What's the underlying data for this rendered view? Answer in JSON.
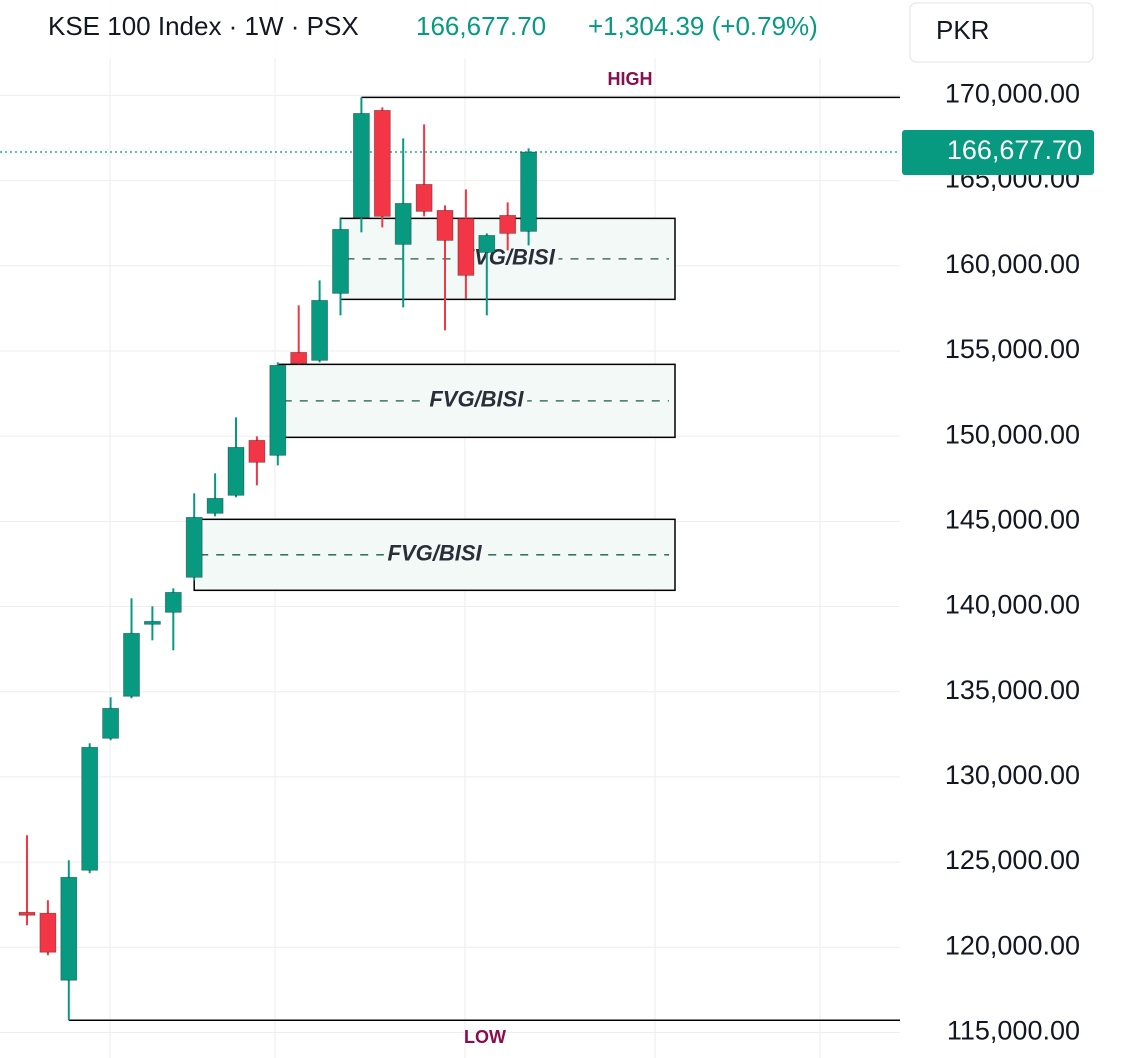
{
  "chart_data": {
    "type": "candlestick",
    "title": "KSE 100 Index · 1W · PSX",
    "price": "166,677.70",
    "change": "+1,304.39 (+0.79%)",
    "currency": "PKR",
    "up_color": "#089981",
    "down_color": "#f23645",
    "ylim": [
      113500,
      175600
    ],
    "yticks": [
      {
        "value": 115000,
        "label": "115,000.00"
      },
      {
        "value": 120000,
        "label": "120,000.00"
      },
      {
        "value": 125000,
        "label": "125,000.00"
      },
      {
        "value": 130000,
        "label": "130,000.00"
      },
      {
        "value": 135000,
        "label": "135,000.00"
      },
      {
        "value": 140000,
        "label": "140,000.00"
      },
      {
        "value": 145000,
        "label": "145,000.00"
      },
      {
        "value": 150000,
        "label": "150,000.00"
      },
      {
        "value": 155000,
        "label": "155,000.00"
      },
      {
        "value": 160000,
        "label": "160,000.00"
      },
      {
        "value": 165000,
        "label": "165,000.00"
      },
      {
        "value": 170000,
        "label": "170,000.00"
      }
    ],
    "grid": true,
    "open": [
      122054,
      122000,
      118063,
      124519,
      132265,
      134730,
      138955,
      139659,
      141714,
      145470,
      146526,
      149754,
      148873,
      154918,
      154448,
      158380,
      162840,
      169120,
      161256,
      164777,
      163251,
      162782,
      160786,
      162958,
      162019
    ],
    "high": [
      126573,
      122760,
      125106,
      131971,
      134671,
      140481,
      140012,
      141068,
      146643,
      147817,
      151103,
      149988,
      154331,
      157676,
      159143,
      162782,
      169883,
      169296,
      167477,
      168298,
      163545,
      164484,
      161901,
      163721,
      166890
    ],
    "low": [
      121291,
      119530,
      115716,
      124343,
      132148,
      134613,
      138016,
      137430,
      141538,
      145294,
      146408,
      147113,
      148286,
      154214,
      154331,
      157089,
      161960,
      162254,
      157559,
      162899,
      156209,
      158087,
      157089,
      160904,
      161197
    ],
    "close": [
      121878,
      119707,
      124108,
      131737,
      134026,
      138427,
      139131,
      140833,
      145235,
      146350,
      149343,
      148463,
      154155,
      154272,
      157969,
      162136,
      168944,
      162899,
      163662,
      163192,
      161490,
      159437,
      161784,
      161901,
      166677.7
    ],
    "price_tag": {
      "value": 166677.7,
      "label": "166,677.70"
    },
    "high_line": {
      "label": "HIGH",
      "value": 169883,
      "start": 16
    },
    "low_line": {
      "label": "LOW",
      "value": 115716,
      "start": 2
    },
    "zones": [
      {
        "label": "FVG/BISI",
        "top": 162782,
        "bottom": 158028,
        "start": 15
      },
      {
        "label": "FVG/BISI",
        "top": 154214,
        "bottom": 149930,
        "start": 12
      },
      {
        "label": "FVG/BISI",
        "top": 145118,
        "bottom": 140951,
        "start": 8
      }
    ]
  }
}
